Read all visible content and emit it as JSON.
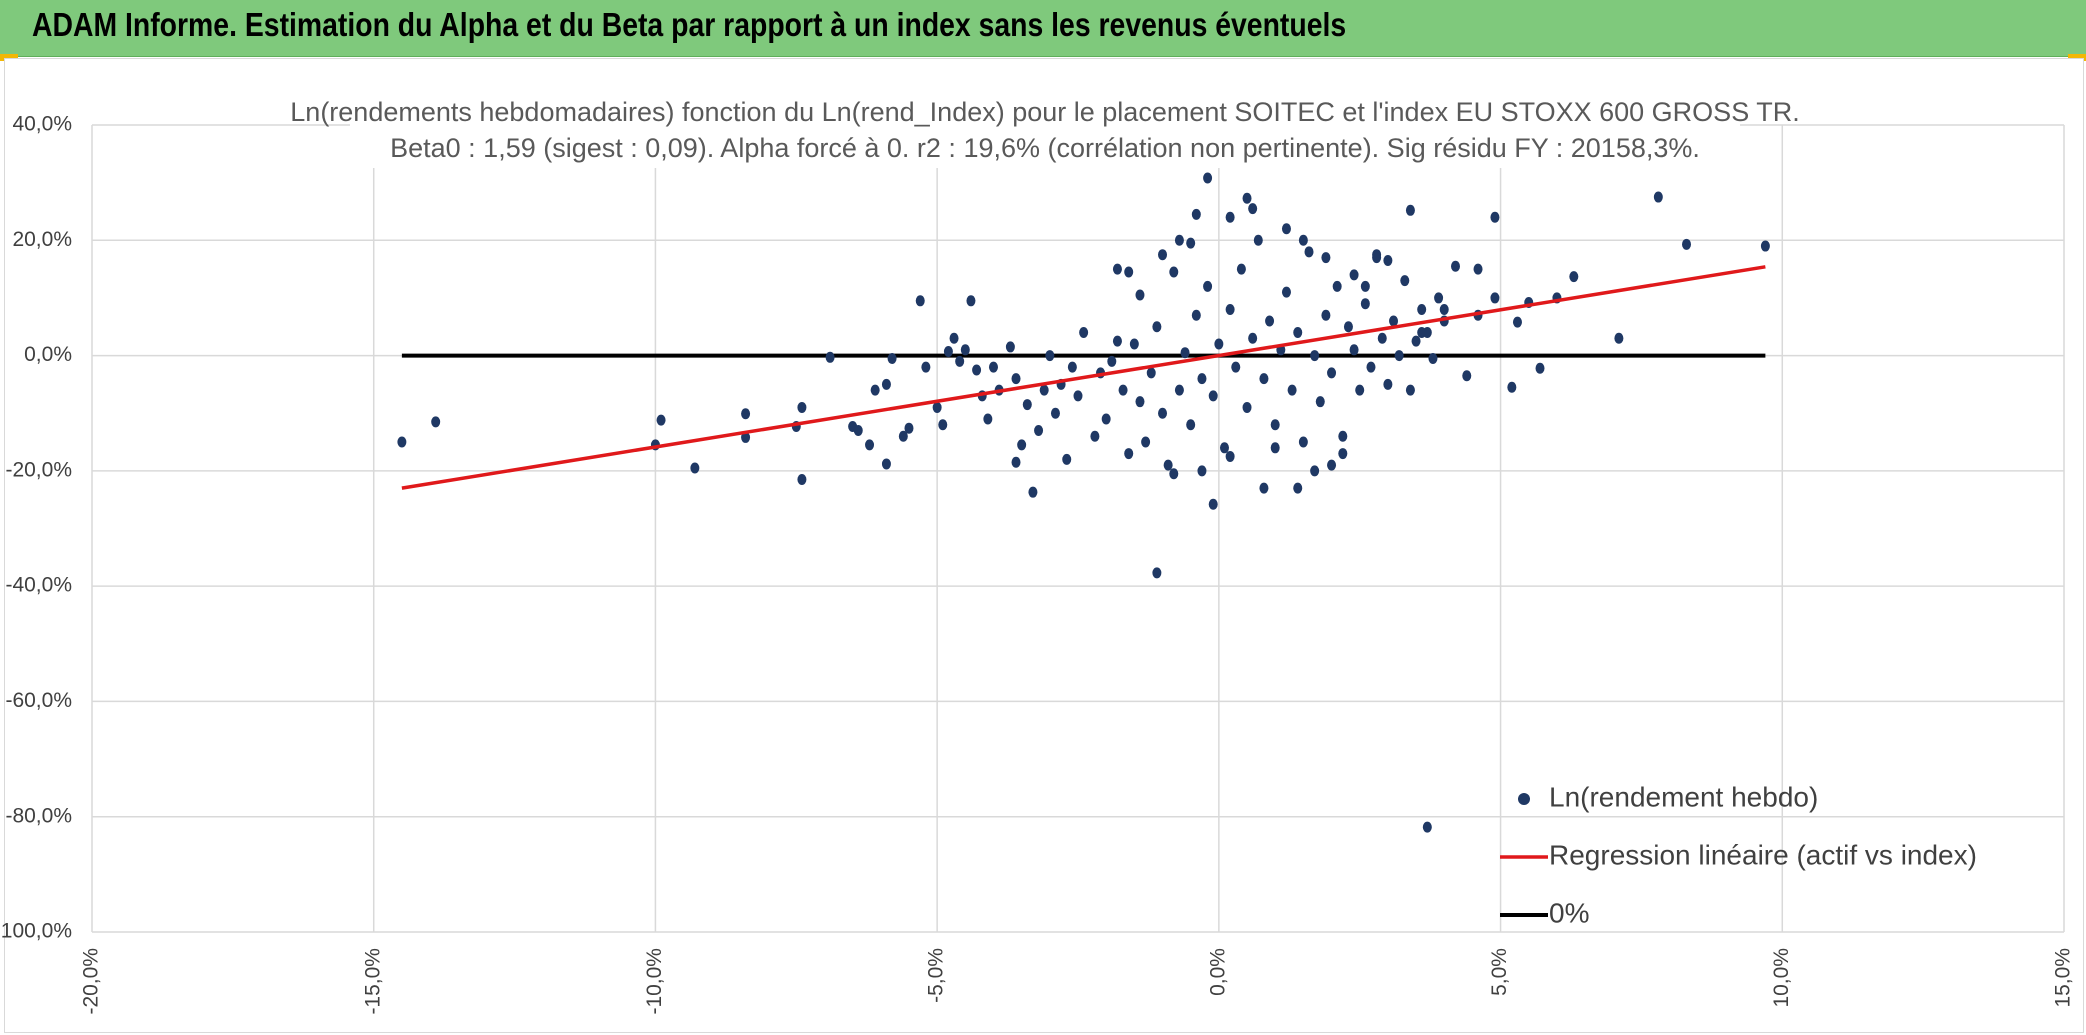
{
  "banner": {
    "title": "ADAM Informe. Estimation du Alpha et du Beta par rapport à un index sans les revenus éventuels"
  },
  "colors": {
    "banner": "#7fc97c",
    "points": "#1f3864",
    "regression": "#e0191b",
    "zero_line": "#000000",
    "grid": "#d9d9d9",
    "accent": "#f2b705"
  },
  "chart_data": {
    "type": "scatter",
    "title": "Ln(rendements hebdomadaires) fonction du Ln(rend_Index) pour le placement SOITEC et l'index EU STOXX 600 GROSS TR.",
    "subtitle": "Beta0 : 1,59 (sigest : 0,09). Alpha forcé à 0. r2 : 19,6% (corrélation non pertinente). Sig résidu FY : 20158,3%.",
    "xlabel": "",
    "ylabel": "",
    "xlim": [
      -0.2,
      0.15
    ],
    "ylim": [
      -1.0,
      0.4
    ],
    "x_ticks": [
      "-20,0%",
      "-15,0%",
      "-10,0%",
      "-5,0%",
      "0,0%",
      "5,0%",
      "10,0%",
      "15,0%"
    ],
    "y_ticks": [
      "40,0%",
      "20,0%",
      "0,0%",
      "-20,0%",
      "-40,0%",
      "-60,0%",
      "-80,0%",
      "-100,0%"
    ],
    "grid": true,
    "legend_position": "bottom-right",
    "series": [
      {
        "name": "Ln(rendement hebdo)",
        "kind": "scatter",
        "points": [
          [
            -0.145,
            -0.15
          ],
          [
            -0.139,
            -0.115
          ],
          [
            -0.1,
            -0.155
          ],
          [
            -0.099,
            -0.112
          ],
          [
            -0.093,
            -0.195
          ],
          [
            -0.084,
            -0.101
          ],
          [
            -0.084,
            -0.142
          ],
          [
            -0.075,
            -0.123
          ],
          [
            -0.074,
            -0.09
          ],
          [
            -0.074,
            -0.215
          ],
          [
            -0.069,
            -0.003
          ],
          [
            -0.065,
            -0.123
          ],
          [
            -0.064,
            -0.13
          ],
          [
            -0.062,
            -0.155
          ],
          [
            -0.061,
            -0.06
          ],
          [
            -0.059,
            -0.188
          ],
          [
            -0.059,
            -0.05
          ],
          [
            -0.058,
            -0.005
          ],
          [
            -0.056,
            -0.14
          ],
          [
            -0.055,
            -0.126
          ],
          [
            -0.053,
            0.095
          ],
          [
            -0.052,
            -0.02
          ],
          [
            -0.05,
            -0.09
          ],
          [
            -0.049,
            -0.12
          ],
          [
            -0.048,
            0.007
          ],
          [
            -0.047,
            0.03
          ],
          [
            -0.046,
            -0.01
          ],
          [
            -0.045,
            0.01
          ],
          [
            -0.044,
            0.095
          ],
          [
            -0.043,
            -0.025
          ],
          [
            -0.042,
            -0.07
          ],
          [
            -0.041,
            -0.11
          ],
          [
            -0.04,
            -0.02
          ],
          [
            -0.039,
            -0.06
          ],
          [
            -0.037,
            0.015
          ],
          [
            -0.036,
            -0.04
          ],
          [
            -0.036,
            -0.185
          ],
          [
            -0.035,
            -0.155
          ],
          [
            -0.034,
            -0.085
          ],
          [
            -0.033,
            -0.237
          ],
          [
            -0.032,
            -0.13
          ],
          [
            -0.031,
            -0.06
          ],
          [
            -0.03,
            0.0
          ],
          [
            -0.029,
            -0.1
          ],
          [
            -0.028,
            -0.05
          ],
          [
            -0.027,
            -0.18
          ],
          [
            -0.026,
            -0.02
          ],
          [
            -0.025,
            -0.07
          ],
          [
            -0.024,
            0.04
          ],
          [
            -0.022,
            -0.14
          ],
          [
            -0.021,
            -0.03
          ],
          [
            -0.02,
            -0.11
          ],
          [
            -0.019,
            -0.01
          ],
          [
            -0.018,
            0.025
          ],
          [
            -0.017,
            -0.06
          ],
          [
            -0.016,
            -0.17
          ],
          [
            -0.015,
            0.02
          ],
          [
            -0.014,
            -0.08
          ],
          [
            -0.013,
            -0.15
          ],
          [
            -0.012,
            -0.03
          ],
          [
            -0.011,
            0.05
          ],
          [
            -0.01,
            -0.1
          ],
          [
            -0.009,
            -0.19
          ],
          [
            -0.008,
            0.145
          ],
          [
            -0.007,
            -0.06
          ],
          [
            -0.006,
            0.005
          ],
          [
            -0.005,
            -0.12
          ],
          [
            -0.004,
            0.07
          ],
          [
            -0.003,
            -0.04
          ],
          [
            -0.002,
            0.12
          ],
          [
            -0.001,
            -0.07
          ],
          [
            0.0,
            0.02
          ],
          [
            0.001,
            -0.16
          ],
          [
            0.002,
            0.08
          ],
          [
            0.003,
            -0.02
          ],
          [
            0.004,
            0.15
          ],
          [
            0.005,
            -0.09
          ],
          [
            0.006,
            0.03
          ],
          [
            0.007,
            0.2
          ],
          [
            0.008,
            -0.04
          ],
          [
            0.009,
            0.06
          ],
          [
            0.01,
            -0.12
          ],
          [
            0.011,
            0.01
          ],
          [
            0.012,
            0.11
          ],
          [
            0.013,
            -0.06
          ],
          [
            0.014,
            0.04
          ],
          [
            0.015,
            -0.15
          ],
          [
            0.016,
            0.18
          ],
          [
            0.017,
            0.0
          ],
          [
            0.018,
            -0.08
          ],
          [
            0.019,
            0.07
          ],
          [
            0.02,
            -0.03
          ],
          [
            0.021,
            0.12
          ],
          [
            0.022,
            -0.14
          ],
          [
            0.023,
            0.05
          ],
          [
            0.024,
            0.01
          ],
          [
            0.025,
            -0.06
          ],
          [
            0.026,
            0.09
          ],
          [
            0.027,
            -0.02
          ],
          [
            0.028,
            0.17
          ],
          [
            0.029,
            0.03
          ],
          [
            0.03,
            -0.05
          ],
          [
            0.031,
            0.06
          ],
          [
            0.032,
            0.0
          ],
          [
            0.033,
            0.13
          ],
          [
            0.034,
            -0.06
          ],
          [
            0.035,
            0.025
          ],
          [
            0.036,
            0.08
          ],
          [
            0.037,
            0.04
          ],
          [
            0.038,
            -0.005
          ],
          [
            0.039,
            0.1
          ],
          [
            0.04,
            0.06
          ],
          [
            -0.011,
            -0.377
          ],
          [
            -0.001,
            -0.258
          ],
          [
            0.005,
            0.273
          ],
          [
            -0.002,
            0.308
          ],
          [
            0.034,
            0.252
          ],
          [
            0.037,
            -0.818
          ],
          [
            0.078,
            0.275
          ],
          [
            0.083,
            0.193
          ],
          [
            0.097,
            0.19
          ],
          [
            0.049,
            0.24
          ],
          [
            0.063,
            0.137
          ],
          [
            0.071,
            0.03
          ],
          [
            0.057,
            -0.022
          ],
          [
            0.053,
            0.058
          ],
          [
            0.052,
            -0.055
          ],
          [
            0.044,
            -0.035
          ],
          [
            0.046,
            0.07
          ],
          [
            0.049,
            0.1
          ],
          [
            0.055,
            0.092
          ],
          [
            0.06,
            0.1
          ],
          [
            0.042,
            0.155
          ],
          [
            0.04,
            0.08
          ],
          [
            0.046,
            0.15
          ],
          [
            0.036,
            0.04
          ],
          [
            0.03,
            0.165
          ],
          [
            0.028,
            0.175
          ],
          [
            -0.004,
            0.245
          ],
          [
            -0.01,
            0.175
          ],
          [
            -0.018,
            0.15
          ],
          [
            -0.016,
            0.145
          ],
          [
            -0.014,
            0.105
          ],
          [
            -0.007,
            0.2
          ],
          [
            -0.005,
            0.195
          ],
          [
            0.002,
            0.24
          ],
          [
            0.006,
            0.255
          ],
          [
            0.012,
            0.22
          ],
          [
            0.015,
            0.2
          ],
          [
            0.019,
            0.17
          ],
          [
            0.024,
            0.14
          ],
          [
            0.026,
            0.12
          ],
          [
            0.017,
            -0.2
          ],
          [
            0.014,
            -0.23
          ],
          [
            0.008,
            -0.23
          ],
          [
            0.002,
            -0.175
          ],
          [
            -0.003,
            -0.2
          ],
          [
            -0.008,
            -0.205
          ],
          [
            0.022,
            -0.17
          ],
          [
            0.02,
            -0.19
          ],
          [
            0.01,
            -0.16
          ]
        ]
      },
      {
        "name": "Regression linéaire (actif vs index)",
        "kind": "line",
        "x": [
          -0.145,
          0.097
        ],
        "y": [
          -0.23,
          0.154
        ]
      },
      {
        "name": "0%",
        "kind": "line",
        "x": [
          -0.145,
          0.097
        ],
        "y": [
          0.0,
          0.0
        ]
      }
    ]
  }
}
